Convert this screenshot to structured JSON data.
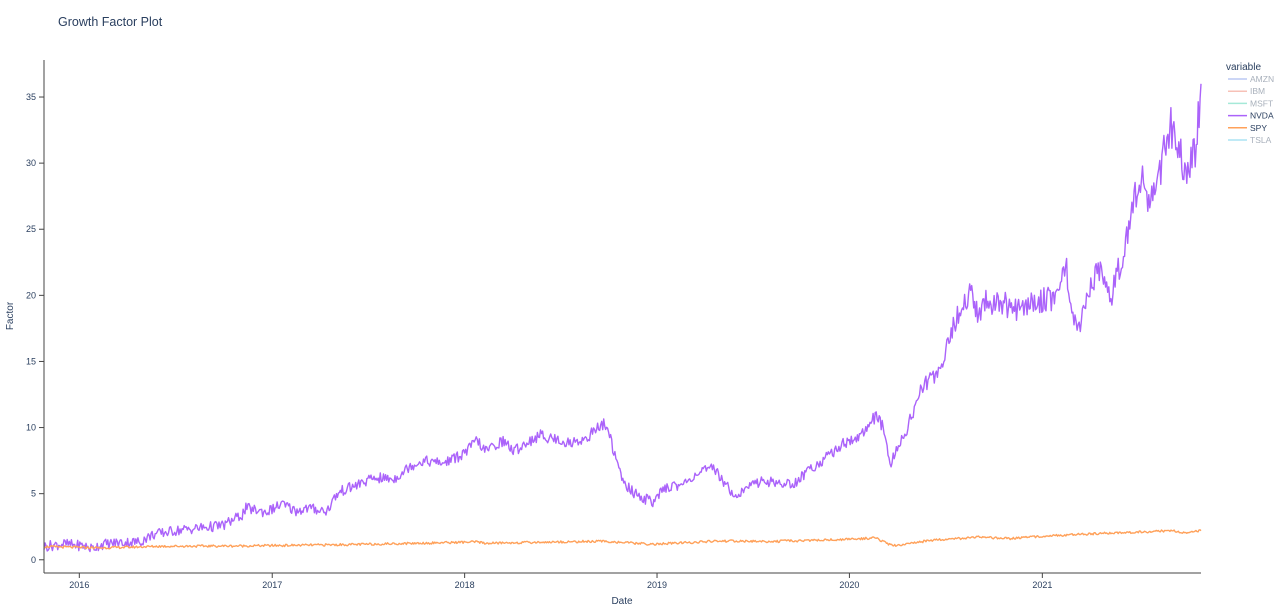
{
  "chart_data": {
    "type": "line",
    "title": "Growth Factor Plot",
    "xlabel": "Date",
    "ylabel": "Factor",
    "xlim": [
      "2015-10-26",
      "2021-10-29"
    ],
    "ylim": [
      -1.0,
      37.8
    ],
    "x_ticks": [
      "2016",
      "2017",
      "2018",
      "2019",
      "2020",
      "2021"
    ],
    "y_ticks": [
      0,
      5,
      10,
      15,
      20,
      25,
      30,
      35
    ],
    "grid": false,
    "legend": {
      "title": "variable",
      "position": "right"
    },
    "series": [
      {
        "name": "AMZN",
        "color": "#9fb2ef",
        "visible": false,
        "x": [],
        "values": []
      },
      {
        "name": "IBM",
        "color": "#f5a89a",
        "visible": false,
        "x": [],
        "values": []
      },
      {
        "name": "MSFT",
        "color": "#7fe0c8",
        "visible": false,
        "x": [],
        "values": []
      },
      {
        "name": "NVDA",
        "color": "#ab63fa",
        "visible": true,
        "x": [
          "2015-10-26",
          "2015-12-01",
          "2016-01-10",
          "2016-01-25",
          "2016-02-10",
          "2016-03-15",
          "2016-04-25",
          "2016-05-05",
          "2016-05-20",
          "2016-06-30",
          "2016-08-15",
          "2016-09-30",
          "2016-11-05",
          "2016-11-12",
          "2016-12-20",
          "2017-01-20",
          "2017-02-15",
          "2017-03-10",
          "2017-04-15",
          "2017-05-01",
          "2017-05-12",
          "2017-06-20",
          "2017-07-15",
          "2017-08-20",
          "2017-09-20",
          "2017-10-15",
          "2017-11-20",
          "2017-12-20",
          "2018-01-05",
          "2018-01-25",
          "2018-02-08",
          "2018-02-25",
          "2018-03-15",
          "2018-04-05",
          "2018-04-25",
          "2018-05-25",
          "2018-06-25",
          "2018-07-20",
          "2018-08-20",
          "2018-09-20",
          "2018-10-01",
          "2018-10-15",
          "2018-10-30",
          "2018-11-20",
          "2018-12-10",
          "2018-12-24",
          "2019-01-20",
          "2019-02-20",
          "2019-03-20",
          "2019-04-20",
          "2019-05-15",
          "2019-06-03",
          "2019-06-20",
          "2019-07-20",
          "2019-08-15",
          "2019-09-15",
          "2019-10-20",
          "2019-11-20",
          "2019-12-20",
          "2020-01-20",
          "2020-02-19",
          "2020-03-05",
          "2020-03-18",
          "2020-04-15",
          "2020-05-15",
          "2020-06-20",
          "2020-07-20",
          "2020-08-20",
          "2020-09-02",
          "2020-09-10",
          "2020-10-15",
          "2020-11-15",
          "2020-12-15",
          "2021-01-20",
          "2021-02-16",
          "2021-03-08",
          "2021-04-15",
          "2021-05-13",
          "2021-06-10",
          "2021-07-08",
          "2021-07-20",
          "2021-08-10",
          "2021-08-31",
          "2021-09-15",
          "2021-10-04",
          "2021-10-20",
          "2021-10-29"
        ],
        "values": [
          1.0,
          1.2,
          1.05,
          0.85,
          1.15,
          1.3,
          1.35,
          1.6,
          1.9,
          2.2,
          2.4,
          2.6,
          3.4,
          3.9,
          3.6,
          4.2,
          3.7,
          3.9,
          3.7,
          4.8,
          5.2,
          5.8,
          6.2,
          6.1,
          7.1,
          7.5,
          7.3,
          7.8,
          8.2,
          9.1,
          8.2,
          8.6,
          9.0,
          8.2,
          8.8,
          9.4,
          9.1,
          8.8,
          9.2,
          10.3,
          9.8,
          7.5,
          5.8,
          5.0,
          4.6,
          4.4,
          5.5,
          5.7,
          6.6,
          6.9,
          5.5,
          4.8,
          5.5,
          6.0,
          5.8,
          5.7,
          6.9,
          7.8,
          8.8,
          9.3,
          10.8,
          10.0,
          7.2,
          9.5,
          12.8,
          14.5,
          18.0,
          20.5,
          18.0,
          19.5,
          19.5,
          18.8,
          19.5,
          19.8,
          22.0,
          16.8,
          22.0,
          20.0,
          24.5,
          29.5,
          26.5,
          29.0,
          32.8,
          31.5,
          28.8,
          31.5,
          36.0
        ]
      },
      {
        "name": "SPY",
        "color": "#ffa15a",
        "visible": true,
        "x": [
          "2015-10-26",
          "2016-02-11",
          "2016-06-01",
          "2016-11-08",
          "2017-06-01",
          "2018-01-26",
          "2018-02-08",
          "2018-06-01",
          "2018-09-20",
          "2018-12-24",
          "2019-04-30",
          "2019-08-05",
          "2019-12-31",
          "2020-02-19",
          "2020-03-23",
          "2020-06-08",
          "2020-09-02",
          "2020-10-30",
          "2021-01-04",
          "2021-05-01",
          "2021-09-02",
          "2021-10-04",
          "2021-10-29"
        ],
        "values": [
          1.0,
          0.9,
          1.02,
          1.05,
          1.15,
          1.35,
          1.25,
          1.33,
          1.4,
          1.17,
          1.42,
          1.38,
          1.55,
          1.65,
          1.05,
          1.5,
          1.7,
          1.6,
          1.8,
          2.0,
          2.2,
          2.05,
          2.2
        ]
      },
      {
        "name": "TSLA",
        "color": "#8ad8f0",
        "visible": false,
        "x": [],
        "values": []
      }
    ]
  }
}
